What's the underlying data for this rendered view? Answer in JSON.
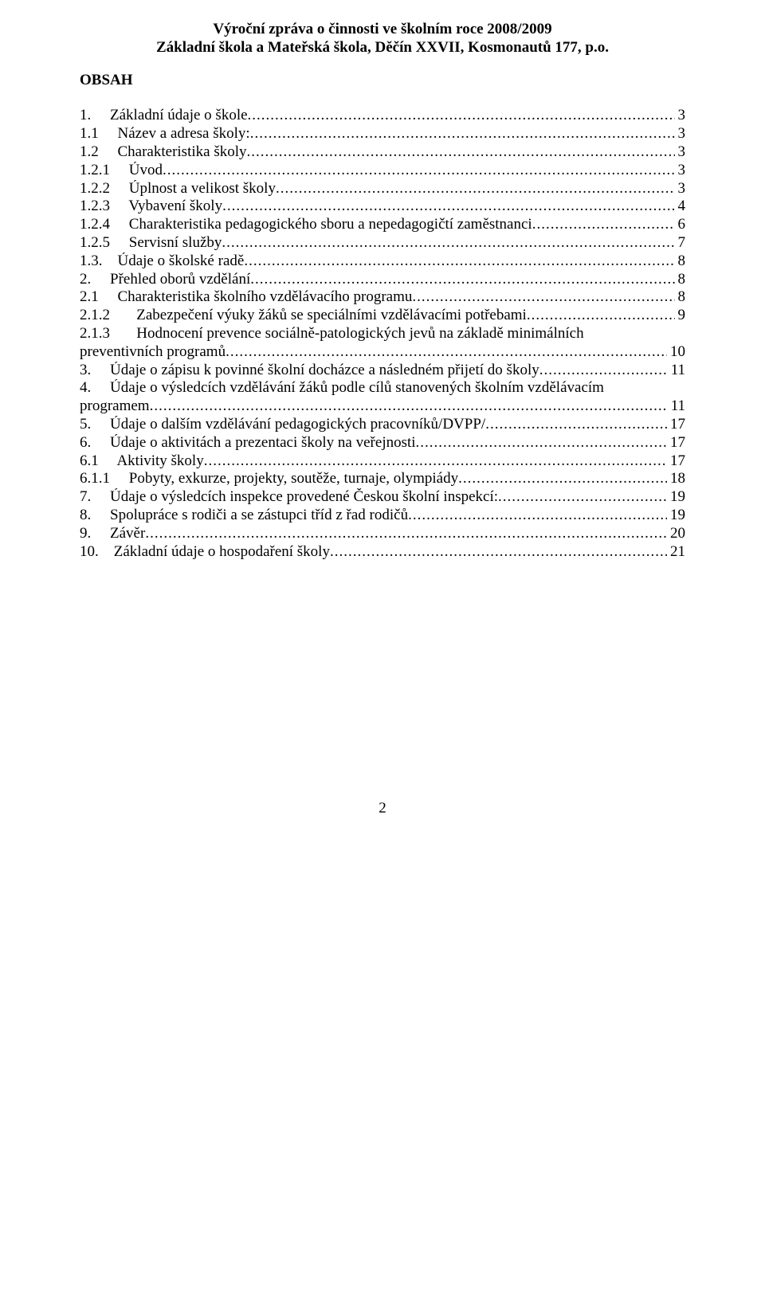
{
  "header": {
    "line1": "Výroční zpráva o činnosti ve školním roce 2008/2009",
    "line2": "Základní škola a Mateřská škola, Děčín XXVII, Kosmonautů 177, p.o."
  },
  "title": "OBSAH",
  "toc": [
    {
      "label": "1.     Základní údaje o škole",
      "page": "3"
    },
    {
      "label": "1.1     Název a adresa školy:",
      "page": "3"
    },
    {
      "label": "1.2     Charakteristika školy",
      "page": "3"
    },
    {
      "label": "1.2.1     Úvod",
      "page": "3"
    },
    {
      "label": "1.2.2     Úplnost a velikost školy",
      "page": "3"
    },
    {
      "label": "1.2.3     Vybavení školy",
      "page": "4"
    },
    {
      "label": "1.2.4     Charakteristika pedagogického sboru a nepedagogičtí zaměstnanci",
      "page": "6"
    },
    {
      "label": "1.2.5     Servisní služby",
      "page": "7"
    },
    {
      "label": "1.3.    Údaje o školské radě",
      "page": "8"
    },
    {
      "label": "2.     Přehled oborů vzdělání",
      "page": "8"
    },
    {
      "label": "2.1     Charakteristika školního vzdělávacího programu",
      "page": "8"
    },
    {
      "label": "2.1.2       Zabezpečení výuky žáků se speciálními vzdělávacími potřebami",
      "page": "9"
    },
    {
      "label": "2.1.3       Hodnocení prevence sociálně-patologických jevů na základě minimálních",
      "nobreak": true
    },
    {
      "label": "preventivních programů",
      "page": "10"
    },
    {
      "label": "3.     Údaje o zápisu k povinné školní docházce a následném přijetí do školy",
      "page": "11"
    },
    {
      "label": "4.     Údaje o výsledcích vzdělávání žáků podle cílů stanovených školním vzdělávacím",
      "nobreak": true
    },
    {
      "label": "programem",
      "page": "11"
    },
    {
      "label": "5.     Údaje o dalším vzdělávání pedagogických pracovníků/DVPP/",
      "page": "17"
    },
    {
      "label": "6.     Údaje o aktivitách a prezentaci školy na veřejnosti",
      "page": "17"
    },
    {
      "label": "6.1     Aktivity školy",
      "page": "17"
    },
    {
      "label": "6.1.1     Pobyty, exkurze, projekty, soutěže, turnaje, olympiády",
      "page": "18"
    },
    {
      "label": "7.     Údaje o výsledcích inspekce provedené Českou školní inspekcí:",
      "page": "19"
    },
    {
      "label": "8.     Spolupráce s rodiči a se zástupci tříd z řad rodičů",
      "page": "19"
    },
    {
      "label": "9.     Závěr",
      "page": "20"
    },
    {
      "label": "10.    Základní údaje o hospodaření školy",
      "page": "21"
    }
  ],
  "page_number": "2"
}
